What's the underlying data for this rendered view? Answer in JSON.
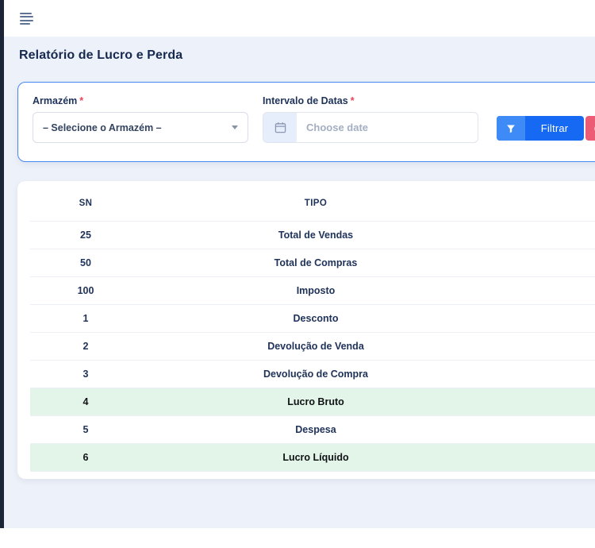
{
  "topbar": {
    "menu_icon": "hamburger-menu-icon"
  },
  "page": {
    "title": "Relatório de Lucro e Perda"
  },
  "filters": {
    "warehouse": {
      "label": "Armazém",
      "required_mark": "*",
      "selected_value": "– Selecione o Armazém –"
    },
    "date_range": {
      "label": "Intervalo de Datas",
      "required_mark": "*",
      "placeholder": "Choose date",
      "value": "",
      "icon": "calendar-icon"
    },
    "filter_button": {
      "label": "Filtrar",
      "icon": "funnel-icon"
    },
    "reset_button": {
      "icon": "reset-icon"
    }
  },
  "table": {
    "columns": [
      "SN",
      "TIPO"
    ],
    "rows": [
      {
        "sn": "25",
        "tipo": "Total de Vendas",
        "highlight": false
      },
      {
        "sn": "50",
        "tipo": "Total de Compras",
        "highlight": false
      },
      {
        "sn": "100",
        "tipo": "Imposto",
        "highlight": false
      },
      {
        "sn": "1",
        "tipo": "Desconto",
        "highlight": false
      },
      {
        "sn": "2",
        "tipo": "Devolução de Venda",
        "highlight": false
      },
      {
        "sn": "3",
        "tipo": "Devolução de Compra",
        "highlight": false
      },
      {
        "sn": "4",
        "tipo": "Lucro Bruto",
        "highlight": true
      },
      {
        "sn": "5",
        "tipo": "Despesa",
        "highlight": false
      },
      {
        "sn": "6",
        "tipo": "Lucro Líquido",
        "highlight": true
      }
    ]
  },
  "colors": {
    "sidebar": "#1c2437",
    "content_background": "#edf1f9",
    "card_border": "#4688f1",
    "primary_button": "#1669f2",
    "primary_button_icon_segment": "#3e8bf8",
    "reset_button": "#ec5c74",
    "highlight_row": "#e3f5e8",
    "heading_text": "#16294e",
    "required_mark": "#e8445a"
  }
}
